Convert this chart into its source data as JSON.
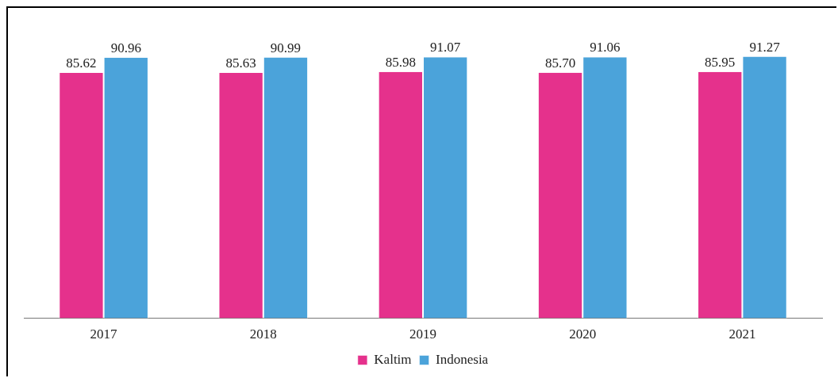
{
  "chart_data": {
    "type": "bar",
    "categories": [
      "2017",
      "2018",
      "2019",
      "2020",
      "2021"
    ],
    "series": [
      {
        "name": "Kaltim",
        "color": "#e5318c",
        "values": [
          85.62,
          85.63,
          85.98,
          85.7,
          85.95
        ],
        "value_labels": [
          "85.62",
          "85.63",
          "85.98",
          "85.70",
          "85.95"
        ]
      },
      {
        "name": "Indonesia",
        "color": "#4ba3da",
        "values": [
          90.96,
          90.99,
          91.07,
          91.06,
          91.27
        ],
        "value_labels": [
          "90.96",
          "90.99",
          "91.07",
          "91.06",
          "91.27"
        ]
      }
    ],
    "tick_labels": "x",
    "legend": "bottom"
  }
}
